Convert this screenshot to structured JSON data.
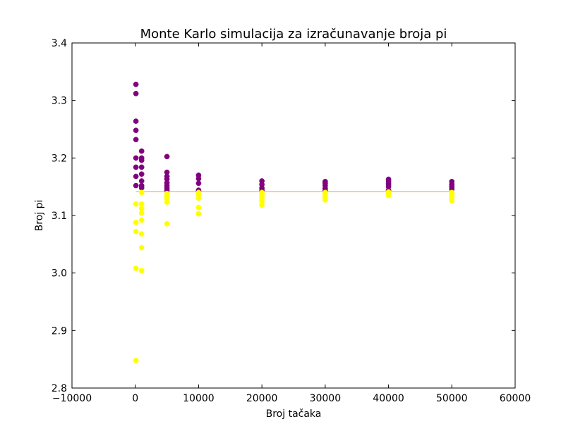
{
  "chart_data": {
    "type": "scatter",
    "title": "Monte Karlo simulacija za izračunavanje broja pi",
    "xlabel": "Broj tačaka",
    "ylabel": "Broj pi",
    "xlim": [
      -10000,
      60000
    ],
    "ylim": [
      2.8,
      3.4
    ],
    "xticks": [
      -10000,
      0,
      10000,
      20000,
      30000,
      40000,
      50000,
      60000
    ],
    "yticks": [
      2.8,
      2.9,
      3.0,
      3.1,
      3.2,
      3.3,
      3.4
    ],
    "xtick_labels": [
      "−10000",
      "0",
      "10000",
      "20000",
      "30000",
      "40000",
      "50000",
      "60000"
    ],
    "ytick_labels": [
      "2.8",
      "2.9",
      "3.0",
      "3.1",
      "3.2",
      "3.3",
      "3.4"
    ],
    "grid": false,
    "colors": {
      "above": "#800080",
      "below": "#ffff00",
      "reference_line": "#ffa500"
    },
    "series": [
      {
        "color": "#800080",
        "points": [
          [
            100,
            3.328
          ],
          [
            100,
            3.312
          ],
          [
            100,
            3.264
          ],
          [
            100,
            3.248
          ],
          [
            100,
            3.232
          ],
          [
            100,
            3.2
          ],
          [
            100,
            3.184
          ],
          [
            100,
            3.168
          ],
          [
            100,
            3.152
          ],
          [
            1000,
            3.212
          ],
          [
            1000,
            3.2
          ],
          [
            1000,
            3.196
          ],
          [
            1000,
            3.184
          ],
          [
            1000,
            3.172
          ],
          [
            1000,
            3.16
          ],
          [
            1000,
            3.152
          ],
          [
            1000,
            3.148
          ],
          [
            5000,
            3.2024
          ],
          [
            5000,
            3.1752
          ],
          [
            5000,
            3.168
          ],
          [
            5000,
            3.1632
          ],
          [
            5000,
            3.1568
          ],
          [
            5000,
            3.152
          ],
          [
            5000,
            3.148
          ],
          [
            5000,
            3.144
          ],
          [
            10000,
            3.17
          ],
          [
            10000,
            3.164
          ],
          [
            10000,
            3.156
          ],
          [
            10000,
            3.144
          ],
          [
            10000,
            3.142
          ],
          [
            20000,
            3.16
          ],
          [
            20000,
            3.154
          ],
          [
            20000,
            3.148
          ],
          [
            20000,
            3.144
          ],
          [
            30000,
            3.159
          ],
          [
            30000,
            3.156
          ],
          [
            30000,
            3.152
          ],
          [
            30000,
            3.147
          ],
          [
            30000,
            3.143
          ],
          [
            40000,
            3.163
          ],
          [
            40000,
            3.16
          ],
          [
            40000,
            3.156
          ],
          [
            40000,
            3.153
          ],
          [
            40000,
            3.15
          ],
          [
            40000,
            3.144
          ],
          [
            50000,
            3.159
          ],
          [
            50000,
            3.154
          ],
          [
            50000,
            3.15
          ],
          [
            50000,
            3.146
          ]
        ]
      },
      {
        "color": "#ffff00",
        "points": [
          [
            100,
            3.12
          ],
          [
            100,
            3.088
          ],
          [
            100,
            3.072
          ],
          [
            100,
            3.008
          ],
          [
            100,
            2.848
          ],
          [
            1000,
            3.14
          ],
          [
            1000,
            3.12
          ],
          [
            1000,
            3.112
          ],
          [
            1000,
            3.104
          ],
          [
            1000,
            3.092
          ],
          [
            1000,
            3.068
          ],
          [
            1000,
            3.044
          ],
          [
            1000,
            3.004
          ],
          [
            5000,
            3.1384
          ],
          [
            5000,
            3.1336
          ],
          [
            5000,
            3.1288
          ],
          [
            5000,
            3.1232
          ],
          [
            5000,
            3.0856
          ],
          [
            10000,
            3.14
          ],
          [
            10000,
            3.136
          ],
          [
            10000,
            3.13
          ],
          [
            10000,
            3.114
          ],
          [
            10000,
            3.103
          ],
          [
            20000,
            3.14
          ],
          [
            20000,
            3.136
          ],
          [
            20000,
            3.132
          ],
          [
            20000,
            3.128
          ],
          [
            20000,
            3.124
          ],
          [
            20000,
            3.118
          ],
          [
            30000,
            3.14
          ],
          [
            30000,
            3.137
          ],
          [
            30000,
            3.134
          ],
          [
            30000,
            3.131
          ],
          [
            30000,
            3.127
          ],
          [
            40000,
            3.141
          ],
          [
            40000,
            3.138
          ],
          [
            40000,
            3.135
          ],
          [
            50000,
            3.14
          ],
          [
            50000,
            3.137
          ],
          [
            50000,
            3.133
          ],
          [
            50000,
            3.129
          ],
          [
            50000,
            3.126
          ]
        ]
      }
    ],
    "reference_line": {
      "value": 3.14159,
      "x_start": 100,
      "x_end": 50000
    }
  }
}
